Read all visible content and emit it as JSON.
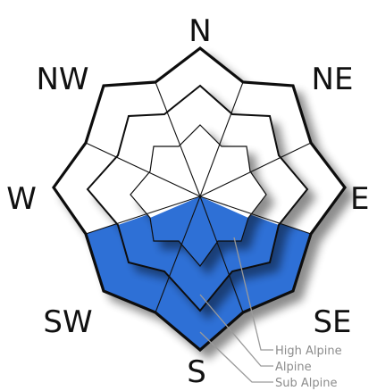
{
  "directions": {
    "n": "N",
    "ne": "NE",
    "e": "E",
    "se": "SE",
    "s": "S",
    "sw": "SW",
    "w": "W",
    "nw": "NW"
  },
  "elevation_labels": {
    "high_alpine": "High Alpine",
    "alpine": "Alpine",
    "sub_alpine": "Sub Alpine"
  },
  "colors": {
    "danger_fill": "#2f6fd6",
    "safe_fill": "#ffffff",
    "outline": "#111111",
    "leader": "#9a9a9a"
  }
}
